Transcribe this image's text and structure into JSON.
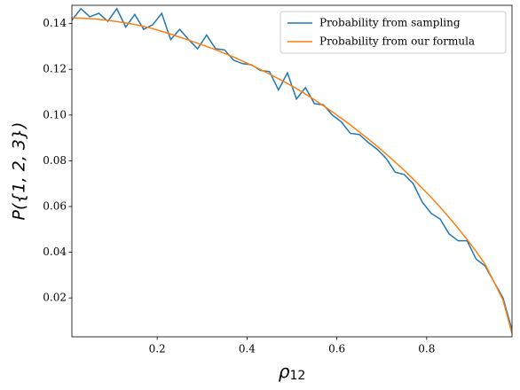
{
  "chart_data": {
    "type": "line",
    "y_label": "P({1, 2, 3})",
    "x_label": {
      "symbol": "ρ",
      "subscript": "12"
    },
    "x": [
      0.01,
      0.03,
      0.05,
      0.07,
      0.09,
      0.11,
      0.13,
      0.15,
      0.17,
      0.19,
      0.21,
      0.23,
      0.25,
      0.27,
      0.29,
      0.31,
      0.33,
      0.35,
      0.37,
      0.39,
      0.41,
      0.43,
      0.45,
      0.47,
      0.49,
      0.51,
      0.53,
      0.55,
      0.57,
      0.59,
      0.61,
      0.63,
      0.65,
      0.67,
      0.69,
      0.71,
      0.73,
      0.75,
      0.77,
      0.79,
      0.81,
      0.83,
      0.85,
      0.87,
      0.89,
      0.91,
      0.93,
      0.95,
      0.97,
      0.99
    ],
    "series": [
      {
        "name": "Probability from sampling",
        "color": "#1f77b4",
        "values": [
          0.1415,
          0.1465,
          0.143,
          0.1445,
          0.141,
          0.1465,
          0.1385,
          0.144,
          0.1375,
          0.1395,
          0.1445,
          0.133,
          0.1375,
          0.133,
          0.129,
          0.135,
          0.129,
          0.1285,
          0.124,
          0.1225,
          0.122,
          0.1195,
          0.119,
          0.111,
          0.1185,
          0.107,
          0.112,
          0.105,
          0.1045,
          0.1,
          0.097,
          0.092,
          0.0915,
          0.088,
          0.085,
          0.081,
          0.075,
          0.074,
          0.07,
          0.062,
          0.057,
          0.0545,
          0.048,
          0.045,
          0.045,
          0.037,
          0.034,
          0.027,
          0.02,
          0.006
        ]
      },
      {
        "name": "Probability from our formula",
        "color": "#ff7f0e",
        "values": [
          0.1425,
          0.1424,
          0.1422,
          0.1419,
          0.1414,
          0.1409,
          0.1403,
          0.1396,
          0.1388,
          0.1378,
          0.1366,
          0.1354,
          0.1341,
          0.1328,
          0.1314,
          0.13,
          0.1286,
          0.127,
          0.1254,
          0.1236,
          0.1218,
          0.1199,
          0.1179,
          0.1159,
          0.1138,
          0.1116,
          0.1092,
          0.1067,
          0.1041,
          0.1014,
          0.0986,
          0.0957,
          0.0926,
          0.0895,
          0.0863,
          0.0829,
          0.0794,
          0.0758,
          0.072,
          0.068,
          0.064,
          0.0597,
          0.0552,
          0.0505,
          0.0456,
          0.0404,
          0.0348,
          0.027,
          0.019,
          0.0045
        ]
      }
    ],
    "xlim": [
      0.01,
      0.99
    ],
    "xticks": [
      0.2,
      0.4,
      0.6,
      0.8
    ],
    "ylim": [
      0.003,
      0.148
    ],
    "yticks": [
      0.02,
      0.04,
      0.06,
      0.08,
      {
        "value": 0.1,
        "label": "0.10"
      },
      0.12,
      0.14
    ],
    "legend": "upper right"
  }
}
